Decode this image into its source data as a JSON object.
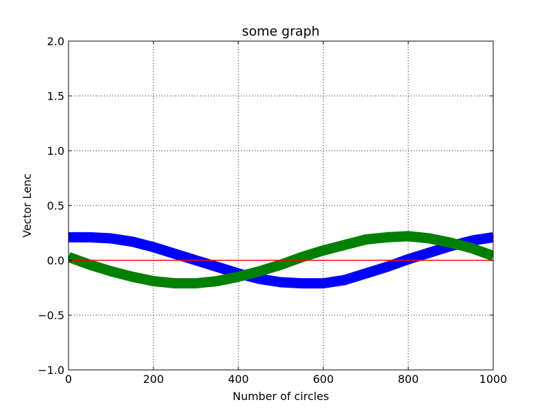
{
  "chart_data": {
    "type": "line",
    "title": "some graph",
    "xlabel": "Number of circles",
    "ylabel": "Vector Lenc",
    "xlim": [
      0,
      1000
    ],
    "ylim": [
      -1.0,
      2.0
    ],
    "x_ticks": [
      0,
      200,
      400,
      600,
      800,
      1000
    ],
    "y_ticks": [
      -1.0,
      -0.5,
      0.0,
      0.5,
      1.0,
      1.5,
      2.0
    ],
    "x_tick_labels": [
      "0",
      "200",
      "400",
      "600",
      "800",
      "1000"
    ],
    "y_tick_labels": [
      "−1.0",
      "−0.5",
      "0.0",
      "0.5",
      "1.0",
      "1.5",
      "2.0"
    ],
    "grid": true,
    "x": [
      0,
      50,
      100,
      150,
      200,
      250,
      300,
      350,
      400,
      450,
      500,
      550,
      600,
      650,
      700,
      750,
      800,
      850,
      900,
      950,
      1000
    ],
    "series": [
      {
        "color": "#0000ff",
        "values": [
          0.21,
          0.21,
          0.2,
          0.17,
          0.12,
          0.06,
          0.0,
          -0.06,
          -0.12,
          -0.17,
          -0.2,
          -0.21,
          -0.21,
          -0.18,
          -0.12,
          -0.06,
          0.01,
          0.07,
          0.13,
          0.18,
          0.21
        ]
      },
      {
        "color": "#008000",
        "values": [
          0.03,
          -0.04,
          -0.1,
          -0.15,
          -0.19,
          -0.21,
          -0.21,
          -0.19,
          -0.15,
          -0.1,
          -0.04,
          0.03,
          0.09,
          0.14,
          0.19,
          0.21,
          0.22,
          0.2,
          0.16,
          0.11,
          0.04
        ]
      },
      {
        "color": "#ff0000",
        "values": [
          0.0,
          0.0,
          0.0,
          0.0,
          0.0,
          0.0,
          0.0,
          0.0,
          0.0,
          0.0,
          0.0,
          0.0,
          0.0,
          0.0,
          0.0,
          0.0,
          0.0,
          0.0,
          0.0,
          0.0,
          0.0
        ]
      }
    ]
  }
}
